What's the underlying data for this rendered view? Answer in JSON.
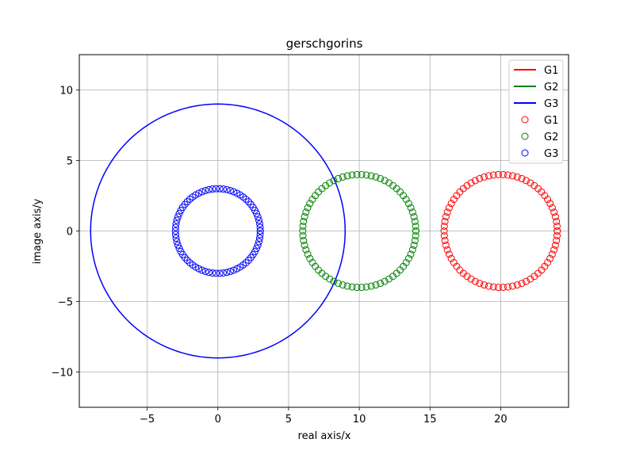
{
  "chart_data": {
    "type": "line",
    "title": "gerschgorins",
    "xlabel": "real axis/x",
    "ylabel": "image axis/y",
    "xlim": [
      -9.8,
      24.8
    ],
    "ylim": [
      -12.5,
      12.5
    ],
    "xticks": [
      -5,
      0,
      5,
      10,
      15,
      20
    ],
    "yticks": [
      -10,
      -5,
      0,
      5,
      10
    ],
    "xtick_labels": [
      "−5",
      "0",
      "5",
      "10",
      "15",
      "20"
    ],
    "ytick_labels": [
      "−10",
      "−5",
      "0",
      "5",
      "10"
    ],
    "grid": true,
    "legend_position": "top-right",
    "series": [
      {
        "name": "G1",
        "kind": "line",
        "color": "#ff0000",
        "center": [
          20,
          0
        ],
        "radius": 4,
        "show": false
      },
      {
        "name": "G2",
        "kind": "line",
        "color": "#008000",
        "center": [
          10,
          0
        ],
        "radius": 4,
        "show": false
      },
      {
        "name": "G3",
        "kind": "line",
        "color": "#0000ff",
        "center": [
          0,
          0
        ],
        "radius": 9,
        "show": true
      },
      {
        "name": "G1",
        "kind": "marker",
        "color": "#ff0000",
        "center": [
          20,
          0
        ],
        "radius": 4,
        "points": 75
      },
      {
        "name": "G2",
        "kind": "marker",
        "color": "#008000",
        "center": [
          10,
          0
        ],
        "radius": 4,
        "points": 75
      },
      {
        "name": "G3",
        "kind": "marker",
        "color": "#0000ff",
        "center": [
          0,
          0
        ],
        "radius": 3,
        "points": 75
      }
    ]
  }
}
